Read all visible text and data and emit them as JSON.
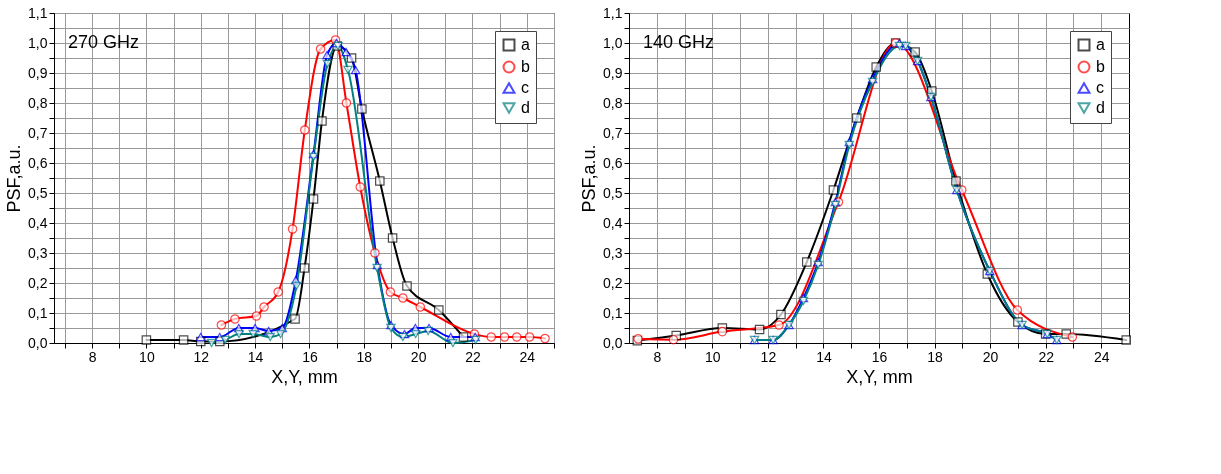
{
  "chart_data": [
    {
      "type": "line",
      "xlabel": "X,Y, mm",
      "ylabel": "PSF,a.u.",
      "annotations": [
        "270 GHz"
      ],
      "grid": true,
      "legend": "top right",
      "line_style": "solid",
      "xlim": [
        6.6,
        25
      ],
      "ylim": [
        0,
        1.1
      ],
      "xticks": [
        {
          "value": 7,
          "label": null
        },
        8,
        {
          "value": 9,
          "label": null
        },
        10,
        {
          "value": 11,
          "label": null
        },
        12,
        {
          "value": 13,
          "label": null
        },
        14,
        {
          "value": 15,
          "label": null
        },
        16,
        {
          "value": 17,
          "label": null
        },
        18,
        {
          "value": 19,
          "label": null
        },
        20,
        {
          "value": 21,
          "label": null
        },
        22,
        {
          "value": 23,
          "label": null
        },
        24,
        {
          "value": 25,
          "label": null
        }
      ],
      "yticks": [
        {
          "value": 0,
          "label": "0,0"
        },
        {
          "value": 0.05,
          "label": null
        },
        {
          "value": 0.1,
          "label": "0,1"
        },
        {
          "value": 0.15,
          "label": null
        },
        {
          "value": 0.2,
          "label": "0,2"
        },
        {
          "value": 0.25,
          "label": null
        },
        {
          "value": 0.3,
          "label": "0,3"
        },
        {
          "value": 0.35,
          "label": null
        },
        {
          "value": 0.4,
          "label": "0,4"
        },
        {
          "value": 0.45,
          "label": null
        },
        {
          "value": 0.5,
          "label": "0,5"
        },
        {
          "value": 0.55,
          "label": null
        },
        {
          "value": 0.6,
          "label": "0,6"
        },
        {
          "value": 0.65,
          "label": null
        },
        {
          "value": 0.7,
          "label": "0,7"
        },
        {
          "value": 0.75,
          "label": null
        },
        {
          "value": 0.8,
          "label": "0,8"
        },
        {
          "value": 0.85,
          "label": null
        },
        {
          "value": 0.9,
          "label": "0,9"
        },
        {
          "value": 0.95,
          "label": null
        },
        {
          "value": 1.0,
          "label": "1,0"
        },
        {
          "value": 1.05,
          "label": null
        },
        {
          "value": 1.1,
          "label": "1,1"
        }
      ],
      "series": [
        {
          "name": "a",
          "color": "#000000",
          "marker": "square",
          "x": [
            10,
            11.37,
            12.0,
            12.7,
            15.47,
            15.82,
            16.15,
            16.46,
            17.02,
            17.55,
            17.93,
            18.59,
            19.06,
            19.59,
            20.76,
            21.67
          ],
          "values": [
            0.01,
            0.01,
            0.005,
            0.005,
            0.08,
            0.25,
            0.48,
            0.74,
            0.99,
            0.95,
            0.78,
            0.54,
            0.35,
            0.19,
            0.11,
            0.02
          ]
        },
        {
          "name": "b",
          "color": "#ff0000",
          "marker": "circle",
          "x": [
            12.76,
            13.26,
            14.05,
            14.33,
            14.85,
            15.38,
            15.83,
            16.41,
            16.96,
            17.36,
            17.87,
            18.41,
            18.98,
            19.44,
            20.08,
            22.07,
            22.69,
            23.18,
            23.63,
            24.1,
            24.67
          ],
          "values": [
            0.06,
            0.08,
            0.09,
            0.12,
            0.17,
            0.38,
            0.71,
            0.98,
            1.01,
            0.8,
            0.52,
            0.3,
            0.17,
            0.15,
            0.12,
            0.03,
            0.02,
            0.02,
            0.02,
            0.02,
            0.015
          ]
        },
        {
          "name": "c",
          "color": "#0000ff",
          "marker": "triangle",
          "x": [
            12.0,
            12.7,
            13.4,
            14.0,
            14.5,
            15.0,
            15.5,
            16.15,
            16.65,
            17.0,
            17.35,
            17.7,
            18.5,
            19.0,
            19.5,
            19.9,
            20.4,
            21.2,
            22.1
          ],
          "values": [
            0.02,
            0.02,
            0.05,
            0.05,
            0.04,
            0.05,
            0.21,
            0.63,
            0.96,
            1.0,
            0.97,
            0.91,
            0.26,
            0.06,
            0.03,
            0.05,
            0.05,
            0.02,
            0.02
          ]
        },
        {
          "name": "d",
          "color": "#008080",
          "marker": "triangle-down",
          "x": [
            12.4,
            12.9,
            13.41,
            13.93,
            14.56,
            14.94,
            15.52,
            16.15,
            16.66,
            17.05,
            17.42,
            18.49,
            19.0,
            19.44,
            19.91,
            20.37,
            21.28,
            22.12
          ],
          "values": [
            0.0,
            0.01,
            0.03,
            0.03,
            0.02,
            0.03,
            0.19,
            0.62,
            0.93,
            0.99,
            0.91,
            0.25,
            0.05,
            0.02,
            0.03,
            0.04,
            0.0,
            0.01
          ]
        }
      ]
    },
    {
      "type": "line",
      "xlabel": "X,Y, mm",
      "ylabel": "PSF,a.u.",
      "annotations": [
        "140 GHz"
      ],
      "grid": true,
      "legend": "top right",
      "line_style": "solid",
      "xlim": [
        7,
        25
      ],
      "ylim": [
        0,
        1.1
      ],
      "xticks": [
        8,
        {
          "value": 9,
          "label": null
        },
        10,
        {
          "value": 11,
          "label": null
        },
        12,
        {
          "value": 13,
          "label": null
        },
        14,
        {
          "value": 15,
          "label": null
        },
        16,
        {
          "value": 17,
          "label": null
        },
        18,
        {
          "value": 19,
          "label": null
        },
        20,
        {
          "value": 21,
          "label": null
        },
        22,
        {
          "value": 23,
          "label": null
        },
        24
      ],
      "yticks": [
        {
          "value": 0,
          "label": "0,0"
        },
        {
          "value": 0.05,
          "label": null
        },
        {
          "value": 0.1,
          "label": "0,1"
        },
        {
          "value": 0.15,
          "label": null
        },
        {
          "value": 0.2,
          "label": "0,2"
        },
        {
          "value": 0.25,
          "label": null
        },
        {
          "value": 0.3,
          "label": "0,3"
        },
        {
          "value": 0.35,
          "label": null
        },
        {
          "value": 0.4,
          "label": "0,4"
        },
        {
          "value": 0.45,
          "label": null
        },
        {
          "value": 0.5,
          "label": "0,5"
        },
        {
          "value": 0.55,
          "label": null
        },
        {
          "value": 0.6,
          "label": "0,6"
        },
        {
          "value": 0.65,
          "label": null
        },
        {
          "value": 0.7,
          "label": "0,7"
        },
        {
          "value": 0.75,
          "label": null
        },
        {
          "value": 0.8,
          "label": "0,8"
        },
        {
          "value": 0.85,
          "label": null
        },
        {
          "value": 0.9,
          "label": "0,9"
        },
        {
          "value": 0.95,
          "label": null
        },
        {
          "value": 1.0,
          "label": "1,0"
        },
        {
          "value": 1.05,
          "label": null
        },
        {
          "value": 1.1,
          "label": "1,1"
        }
      ],
      "series": [
        {
          "name": "a",
          "color": "#000000",
          "marker": "square",
          "x": [
            7.3,
            8.7,
            10.36,
            11.7,
            12.47,
            13.4,
            14.36,
            15.2,
            15.9,
            16.6,
            17.3,
            17.9,
            18.77,
            19.9,
            21.0,
            22.0,
            22.74,
            24.9
          ],
          "values": [
            0.008,
            0.025,
            0.05,
            0.045,
            0.095,
            0.27,
            0.51,
            0.75,
            0.92,
            1.0,
            0.97,
            0.84,
            0.54,
            0.23,
            0.07,
            0.03,
            0.03,
            0.01
          ]
        },
        {
          "name": "b",
          "color": "#ff0000",
          "marker": "circle",
          "x": [
            7.33,
            8.6,
            10.36,
            12.4,
            14.54,
            16.6,
            18.98,
            20.98,
            22.96
          ],
          "values": [
            0.014,
            0.011,
            0.038,
            0.06,
            0.47,
            1.0,
            0.51,
            0.11,
            0.02
          ]
        },
        {
          "name": "c",
          "color": "#0000ff",
          "marker": "triangle",
          "x": [
            11.52,
            12.19,
            12.76,
            13.28,
            13.81,
            14.43,
            14.93,
            15.77,
            16.74,
            16.96,
            17.39,
            17.87,
            18.8,
            19.99,
            21.15,
            22.06,
            22.4
          ],
          "values": [
            0.01,
            0.01,
            0.06,
            0.15,
            0.27,
            0.47,
            0.67,
            0.88,
            1.0,
            0.99,
            0.94,
            0.82,
            0.51,
            0.24,
            0.06,
            0.03,
            0.01
          ]
        },
        {
          "name": "d",
          "color": "#008080",
          "marker": "triangle-down",
          "x": [
            11.52,
            12.19,
            12.76,
            13.28,
            13.81,
            14.43,
            14.93,
            15.77,
            16.74,
            16.96,
            17.39,
            17.87,
            18.8,
            19.99,
            21.15,
            22.06,
            22.4
          ],
          "values": [
            0.01,
            0.01,
            0.06,
            0.14,
            0.26,
            0.46,
            0.66,
            0.87,
            0.99,
            0.99,
            0.94,
            0.82,
            0.51,
            0.24,
            0.06,
            0.03,
            0.01
          ]
        }
      ]
    }
  ]
}
